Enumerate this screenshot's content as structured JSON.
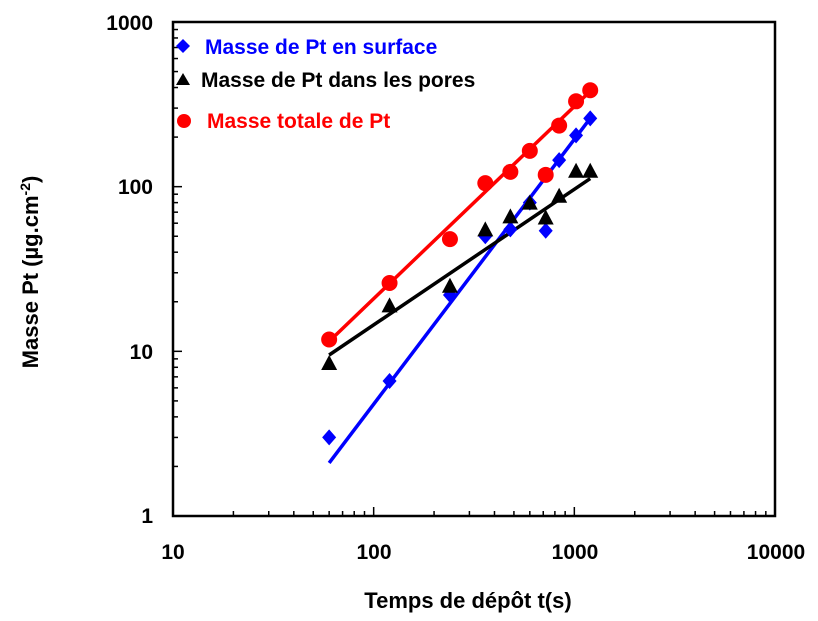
{
  "chart_data": {
    "type": "scatter",
    "x_scale": "log",
    "y_scale": "log",
    "xlabel": "Temps de dépôt t(s)",
    "ylabel_main": "Masse Pt (µg.cm",
    "ylabel_sup": "-2",
    "ylabel_end": ")",
    "xlim": [
      10,
      10000
    ],
    "ylim": [
      1,
      1000
    ],
    "x_ticks": [
      "10",
      "100",
      "1000",
      "10000"
    ],
    "y_ticks": [
      "1",
      "10",
      "100",
      "1000"
    ],
    "grid": false,
    "legend_position": "top-left",
    "series": [
      {
        "name": "Masse de Pt en surface",
        "color": "#0000ff",
        "marker": "diamond",
        "x": [
          60,
          120,
          240,
          360,
          480,
          600,
          720,
          840,
          1020,
          1200
        ],
        "y": [
          3,
          6.6,
          22,
          50,
          55,
          80,
          54,
          145,
          205,
          260
        ],
        "fit": [
          [
            60,
            2.1
          ],
          [
            1200,
            260
          ]
        ]
      },
      {
        "name": "Masse de Pt dans les pores",
        "color": "#000000",
        "marker": "triangle",
        "x": [
          60,
          120,
          240,
          360,
          480,
          600,
          720,
          840,
          1020,
          1200
        ],
        "y": [
          8.5,
          19,
          25,
          55,
          66,
          80,
          65,
          88,
          125,
          125
        ],
        "fit": [
          [
            60,
            9.5
          ],
          [
            1200,
            112
          ]
        ]
      },
      {
        "name": "Masse totale de Pt",
        "color": "#ff0000",
        "marker": "circle",
        "x": [
          60,
          120,
          240,
          360,
          480,
          600,
          720,
          840,
          1020,
          1200
        ],
        "y": [
          11.8,
          26,
          48,
          105,
          123,
          165,
          118,
          235,
          330,
          385
        ],
        "fit": [
          [
            60,
            11.5
          ],
          [
            1200,
            380
          ]
        ]
      }
    ]
  }
}
